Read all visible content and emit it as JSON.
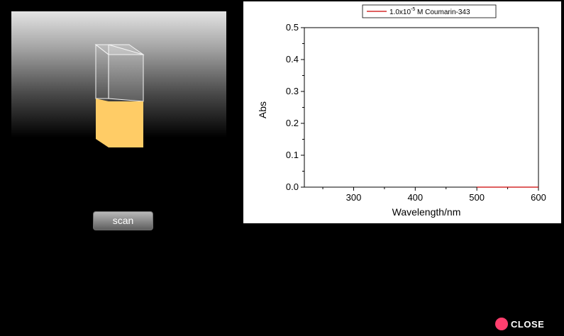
{
  "sample": {
    "liquid_color": "#ffcc66",
    "fill_level": 0.48
  },
  "controls": {
    "scan_label": "scan",
    "close_label": "CLOSE",
    "close_color": "#ff3f6e"
  },
  "chart_data": {
    "type": "line",
    "xlabel": "Wavelength/nm",
    "ylabel": "Abs",
    "xlim": [
      220,
      600
    ],
    "ylim": [
      0,
      0.5
    ],
    "x_ticks": [
      300,
      400,
      500,
      600
    ],
    "y_ticks": [
      0.0,
      0.1,
      0.2,
      0.3,
      0.4,
      0.5
    ],
    "x_tick_labels": [
      "300",
      "400",
      "500",
      "600"
    ],
    "y_tick_labels": [
      "0.0",
      "0.1",
      "0.2",
      "0.3",
      "0.4",
      "0.5"
    ],
    "grid": false,
    "legend_position": "top-center",
    "legend": {
      "label_prefix": "1.0x10",
      "label_exponent": "-5",
      "label_suffix": " M Coumarin-343"
    },
    "series": [
      {
        "color": "#cc0000",
        "x": [
          500,
          520,
          540,
          560,
          580,
          600
        ],
        "y": [
          0,
          0,
          0,
          0,
          0,
          0
        ]
      }
    ]
  }
}
